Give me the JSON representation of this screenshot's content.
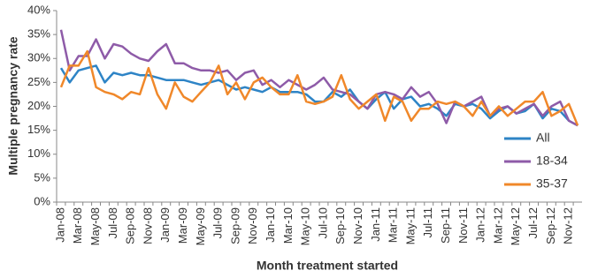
{
  "chart_data": {
    "type": "line",
    "x_label": "Month treatment started",
    "y_label": "Multiple pregnancy rate",
    "categories": [
      "Jan-08",
      null,
      "Mar-08",
      null,
      "May-08",
      null,
      "Jul-08",
      null,
      "Sep-08",
      null,
      "Nov-08",
      null,
      "Jan-09",
      null,
      "Mar-09",
      null,
      "May-09",
      null,
      "Jul-09",
      null,
      "Sep-09",
      null,
      "Nov-09",
      null,
      "Jan-10",
      null,
      "Mar-10",
      null,
      "May-10",
      null,
      "Jul-10",
      null,
      "Sep-10",
      null,
      "Nov-10",
      null,
      "Jan-11",
      null,
      "Mar-11",
      null,
      "May-11",
      null,
      "Jul-11",
      null,
      "Sep-11",
      null,
      "Nov-11",
      null,
      "Jan-12",
      null,
      "Mar-12",
      null,
      "May-12",
      null,
      "Jul-12",
      null,
      "Sep-12",
      null,
      "Nov-12",
      null
    ],
    "series": [
      {
        "name": "All",
        "color": "#2e84c6",
        "values": [
          28,
          25,
          27.5,
          28,
          28.5,
          25,
          27,
          26.5,
          27,
          26.5,
          26.5,
          26,
          25.5,
          25.5,
          25.5,
          25,
          24.5,
          25,
          25.5,
          24.5,
          23.5,
          24,
          23.5,
          23,
          24,
          23,
          23,
          23,
          22.5,
          21,
          21,
          23,
          22,
          23.5,
          21,
          19.5,
          21.5,
          23,
          19.5,
          21.5,
          22,
          20,
          20.5,
          19.5,
          18,
          20.5,
          20,
          20.5,
          19.5,
          17.5,
          19,
          20,
          18.5,
          19,
          20.5,
          17.5,
          19.5,
          19,
          17,
          16
        ]
      },
      {
        "name": "18-34",
        "color": "#8e5ba8",
        "values": [
          36,
          27.5,
          30.5,
          30.5,
          34,
          30,
          33,
          32.5,
          31,
          30,
          29.5,
          31.5,
          33,
          29,
          29,
          28,
          27.5,
          27.5,
          27,
          27.5,
          25.5,
          27,
          27.5,
          24.5,
          25.5,
          24,
          25.5,
          24.5,
          23.5,
          24.5,
          26,
          23.5,
          23,
          22.5,
          21,
          19.5,
          22.5,
          23,
          22.5,
          21.5,
          24,
          22,
          23,
          20.5,
          16.5,
          21,
          20,
          21,
          22,
          18,
          19.5,
          20,
          18.5,
          19.5,
          20.5,
          18,
          20,
          21,
          17,
          16
        ]
      },
      {
        "name": "35-37",
        "color": "#f0882a",
        "values": [
          24,
          28.5,
          28.5,
          31.5,
          24,
          23,
          22.5,
          21.5,
          23,
          22.5,
          28,
          22.5,
          19.5,
          25,
          22,
          21,
          23,
          25,
          28.5,
          22.5,
          25,
          21.5,
          25,
          26,
          24,
          22.5,
          22.5,
          26.5,
          21,
          20.5,
          21,
          22,
          26.5,
          21.5,
          19.5,
          21,
          22.5,
          17,
          22,
          21,
          17,
          19.5,
          19.5,
          21,
          20.5,
          21,
          20,
          18,
          21,
          18,
          20,
          18,
          19.5,
          21,
          21,
          23,
          18,
          19,
          20.5,
          16
        ]
      }
    ],
    "ylim": [
      0,
      40
    ],
    "yticks": [
      {
        "value": 0,
        "label": "0%"
      },
      {
        "value": 5,
        "label": "5%"
      },
      {
        "value": 10,
        "label": "10%"
      },
      {
        "value": 15,
        "label": "15%"
      },
      {
        "value": 20,
        "label": "20%"
      },
      {
        "value": 25,
        "label": "25%"
      },
      {
        "value": 30,
        "label": "30%"
      },
      {
        "value": 35,
        "label": "35%"
      },
      {
        "value": 40,
        "label": "40%"
      }
    ],
    "legend": "right"
  }
}
